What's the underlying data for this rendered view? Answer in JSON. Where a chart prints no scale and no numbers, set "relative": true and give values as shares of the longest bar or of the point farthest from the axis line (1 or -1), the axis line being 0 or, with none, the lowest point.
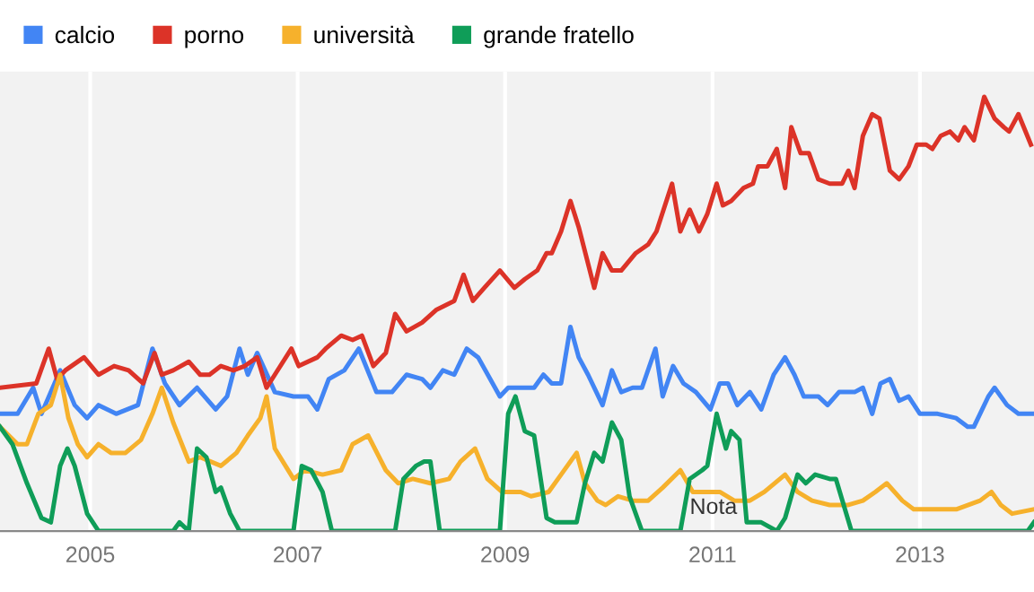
{
  "chart_data": {
    "type": "line",
    "relative": true,
    "xlim": [
      2004.13,
      2014.1
    ],
    "xticks": [
      2005,
      2007,
      2009,
      2011,
      2013
    ],
    "grid": "x",
    "legend": "top left",
    "marker": "none",
    "line_style": "solid",
    "annotations": [
      "Nota"
    ],
    "series": [
      {
        "name": "calcio",
        "color": "#4285f4",
        "x": [
          2004.13,
          2004.3,
          2004.45,
          2004.53,
          2004.71,
          2004.85,
          2004.97,
          2005.08,
          2005.25,
          2005.46,
          2005.6,
          2005.72,
          2005.86,
          2006.03,
          2006.21,
          2006.32,
          2006.44,
          2006.52,
          2006.61,
          2006.78,
          2006.96,
          2007.1,
          2007.19,
          2007.3,
          2007.45,
          2007.59,
          2007.76,
          2007.91,
          2008.05,
          2008.2,
          2008.28,
          2008.4,
          2008.51,
          2008.63,
          2008.74,
          2008.95,
          2009.03,
          2009.28,
          2009.37,
          2009.45,
          2009.54,
          2009.63,
          2009.71,
          2009.8,
          2009.94,
          2010.03,
          2010.12,
          2010.23,
          2010.32,
          2010.45,
          2010.52,
          2010.62,
          2010.72,
          2010.84,
          2010.98,
          2011.07,
          2011.15,
          2011.24,
          2011.36,
          2011.47,
          2011.59,
          2011.7,
          2011.79,
          2011.88,
          2012.02,
          2012.11,
          2012.22,
          2012.37,
          2012.45,
          2012.54,
          2012.62,
          2012.71,
          2012.8,
          2012.89,
          2013.0,
          2013.17,
          2013.35,
          2013.46,
          2013.52,
          2013.66,
          2013.72,
          2013.84,
          2013.95,
          2014.1
        ],
        "values": [
          0.27,
          0.27,
          0.33,
          0.27,
          0.37,
          0.29,
          0.26,
          0.29,
          0.27,
          0.29,
          0.42,
          0.34,
          0.29,
          0.33,
          0.28,
          0.31,
          0.42,
          0.36,
          0.41,
          0.32,
          0.31,
          0.31,
          0.28,
          0.35,
          0.37,
          0.42,
          0.32,
          0.32,
          0.36,
          0.35,
          0.33,
          0.37,
          0.36,
          0.42,
          0.4,
          0.31,
          0.33,
          0.33,
          0.36,
          0.34,
          0.34,
          0.47,
          0.4,
          0.36,
          0.29,
          0.37,
          0.32,
          0.33,
          0.33,
          0.42,
          0.31,
          0.38,
          0.34,
          0.32,
          0.28,
          0.34,
          0.34,
          0.29,
          0.32,
          0.28,
          0.36,
          0.4,
          0.36,
          0.31,
          0.31,
          0.29,
          0.32,
          0.32,
          0.33,
          0.27,
          0.34,
          0.35,
          0.3,
          0.31,
          0.27,
          0.27,
          0.26,
          0.24,
          0.24,
          0.31,
          0.33,
          0.29,
          0.27,
          0.27
        ]
      },
      {
        "name": "porno",
        "color": "#dc3328",
        "x": [
          2004.13,
          2004.48,
          2004.6,
          2004.68,
          2004.76,
          2004.94,
          2005.08,
          2005.23,
          2005.37,
          2005.51,
          2005.62,
          2005.69,
          2005.8,
          2005.95,
          2006.06,
          2006.15,
          2006.26,
          2006.38,
          2006.49,
          2006.61,
          2006.7,
          2006.78,
          2006.94,
          2007.01,
          2007.19,
          2007.27,
          2007.42,
          2007.53,
          2007.62,
          2007.73,
          2007.85,
          2007.94,
          2008.05,
          2008.2,
          2008.34,
          2008.51,
          2008.6,
          2008.69,
          2008.8,
          2008.95,
          2009.09,
          2009.19,
          2009.31,
          2009.4,
          2009.45,
          2009.54,
          2009.63,
          2009.71,
          2009.86,
          2009.94,
          2010.03,
          2010.12,
          2010.26,
          2010.38,
          2010.46,
          2010.61,
          2010.69,
          2010.78,
          2010.87,
          2010.95,
          2011.04,
          2011.1,
          2011.18,
          2011.3,
          2011.39,
          2011.44,
          2011.53,
          2011.62,
          2011.7,
          2011.76,
          2011.85,
          2011.93,
          2012.02,
          2012.13,
          2012.25,
          2012.31,
          2012.37,
          2012.45,
          2012.54,
          2012.61,
          2012.71,
          2012.8,
          2012.89,
          2012.97,
          2013.06,
          2013.12,
          2013.2,
          2013.29,
          2013.37,
          2013.43,
          2013.52,
          2013.62,
          2013.72,
          2013.81,
          2013.86,
          2013.95,
          2014.07
        ],
        "values": [
          0.33,
          0.34,
          0.42,
          0.35,
          0.37,
          0.4,
          0.36,
          0.38,
          0.37,
          0.34,
          0.41,
          0.36,
          0.37,
          0.39,
          0.36,
          0.36,
          0.38,
          0.37,
          0.38,
          0.4,
          0.33,
          0.36,
          0.42,
          0.38,
          0.4,
          0.42,
          0.45,
          0.44,
          0.45,
          0.38,
          0.41,
          0.5,
          0.46,
          0.48,
          0.51,
          0.53,
          0.59,
          0.53,
          0.56,
          0.6,
          0.56,
          0.58,
          0.6,
          0.64,
          0.64,
          0.69,
          0.76,
          0.7,
          0.56,
          0.64,
          0.6,
          0.6,
          0.64,
          0.66,
          0.69,
          0.8,
          0.69,
          0.74,
          0.69,
          0.73,
          0.8,
          0.75,
          0.76,
          0.79,
          0.8,
          0.84,
          0.84,
          0.88,
          0.79,
          0.93,
          0.87,
          0.87,
          0.81,
          0.8,
          0.8,
          0.83,
          0.79,
          0.91,
          0.96,
          0.95,
          0.83,
          0.81,
          0.84,
          0.89,
          0.89,
          0.88,
          0.91,
          0.92,
          0.9,
          0.93,
          0.9,
          1.0,
          0.95,
          0.93,
          0.92,
          0.96,
          0.89
        ]
      },
      {
        "name": "università",
        "color": "#f6b12c",
        "x": [
          2004.13,
          2004.3,
          2004.39,
          2004.5,
          2004.62,
          2004.71,
          2004.79,
          2004.88,
          2004.97,
          2005.08,
          2005.2,
          2005.34,
          2005.49,
          2005.6,
          2005.69,
          2005.8,
          2005.95,
          2006.06,
          2006.26,
          2006.41,
          2006.52,
          2006.64,
          2006.7,
          2006.78,
          2006.96,
          2007.07,
          2007.24,
          2007.42,
          2007.53,
          2007.68,
          2007.85,
          2007.97,
          2008.11,
          2008.28,
          2008.46,
          2008.57,
          2008.71,
          2008.83,
          2008.97,
          2009.15,
          2009.25,
          2009.42,
          2009.54,
          2009.69,
          2009.77,
          2009.89,
          2009.97,
          2010.09,
          2010.23,
          2010.38,
          2010.52,
          2010.69,
          2010.81,
          2010.98,
          2011.07,
          2011.21,
          2011.36,
          2011.5,
          2011.7,
          2011.82,
          2011.96,
          2012.13,
          2012.31,
          2012.45,
          2012.57,
          2012.68,
          2012.83,
          2012.94,
          2013.12,
          2013.35,
          2013.58,
          2013.69,
          2013.78,
          2013.89,
          2014.1
        ],
        "values": [
          0.24,
          0.2,
          0.2,
          0.27,
          0.29,
          0.36,
          0.26,
          0.2,
          0.17,
          0.2,
          0.18,
          0.18,
          0.21,
          0.27,
          0.33,
          0.25,
          0.16,
          0.17,
          0.15,
          0.18,
          0.22,
          0.26,
          0.31,
          0.19,
          0.12,
          0.14,
          0.13,
          0.14,
          0.2,
          0.22,
          0.14,
          0.11,
          0.12,
          0.11,
          0.12,
          0.16,
          0.19,
          0.12,
          0.09,
          0.09,
          0.08,
          0.09,
          0.13,
          0.18,
          0.11,
          0.07,
          0.06,
          0.08,
          0.07,
          0.07,
          0.1,
          0.14,
          0.09,
          0.09,
          0.09,
          0.07,
          0.07,
          0.09,
          0.13,
          0.09,
          0.07,
          0.06,
          0.06,
          0.07,
          0.09,
          0.11,
          0.07,
          0.05,
          0.05,
          0.05,
          0.07,
          0.09,
          0.06,
          0.04,
          0.05
        ]
      },
      {
        "name": "grande fratello",
        "color": "#0f9d58",
        "x": [
          2004.13,
          2004.25,
          2004.39,
          2004.53,
          2004.62,
          2004.71,
          2004.78,
          2004.85,
          2004.97,
          2005.08,
          2005.8,
          2005.86,
          2005.95,
          2006.03,
          2006.12,
          2006.21,
          2006.26,
          2006.35,
          2006.44,
          2006.96,
          2007.04,
          2007.13,
          2007.24,
          2007.33,
          2007.94,
          2008.02,
          2008.14,
          2008.22,
          2008.28,
          2008.37,
          2008.95,
          2009.03,
          2009.1,
          2009.19,
          2009.28,
          2009.4,
          2009.48,
          2009.69,
          2009.77,
          2009.86,
          2009.94,
          2010.03,
          2010.12,
          2010.2,
          2010.32,
          2010.69,
          2010.78,
          2010.9,
          2010.95,
          2011.04,
          2011.13,
          2011.18,
          2011.26,
          2011.33,
          2011.47,
          2011.62,
          2011.7,
          2011.82,
          2011.9,
          2011.99,
          2012.13,
          2012.19,
          2012.34,
          2014.04,
          2014.1
        ],
        "values": [
          0.24,
          0.2,
          0.11,
          0.03,
          0.02,
          0.15,
          0.19,
          0.15,
          0.04,
          0,
          0,
          0.02,
          0,
          0.19,
          0.17,
          0.09,
          0.1,
          0.04,
          0,
          0,
          0.15,
          0.14,
          0.09,
          0,
          0,
          0.12,
          0.15,
          0.16,
          0.16,
          0,
          0,
          0.27,
          0.31,
          0.23,
          0.22,
          0.03,
          0.02,
          0.02,
          0.11,
          0.18,
          0.16,
          0.25,
          0.21,
          0.08,
          0,
          0,
          0.12,
          0.14,
          0.15,
          0.27,
          0.19,
          0.23,
          0.21,
          0.02,
          0.02,
          0,
          0.03,
          0.13,
          0.11,
          0.13,
          0.12,
          0.12,
          0,
          0,
          0.02
        ]
      }
    ]
  }
}
